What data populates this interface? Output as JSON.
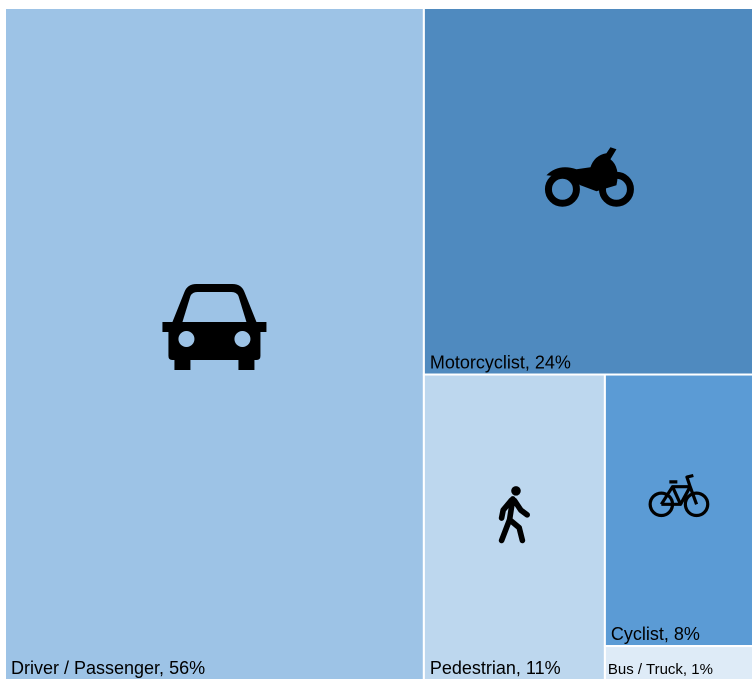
{
  "chart_data": {
    "type": "treemap",
    "values": [
      56,
      24,
      11,
      8,
      1
    ],
    "value_labels": [
      "Driver / Passenger, 56%",
      "Motorcyclist, 24%",
      "Pedestrian, 11%",
      "Cyclist, 8%",
      "Bus / Truck, 1%"
    ],
    "colors": [
      "#9dc3e6",
      "#4f8abf",
      "#bdd7ee",
      "#5b9bd5",
      "#deebf7"
    ]
  }
}
